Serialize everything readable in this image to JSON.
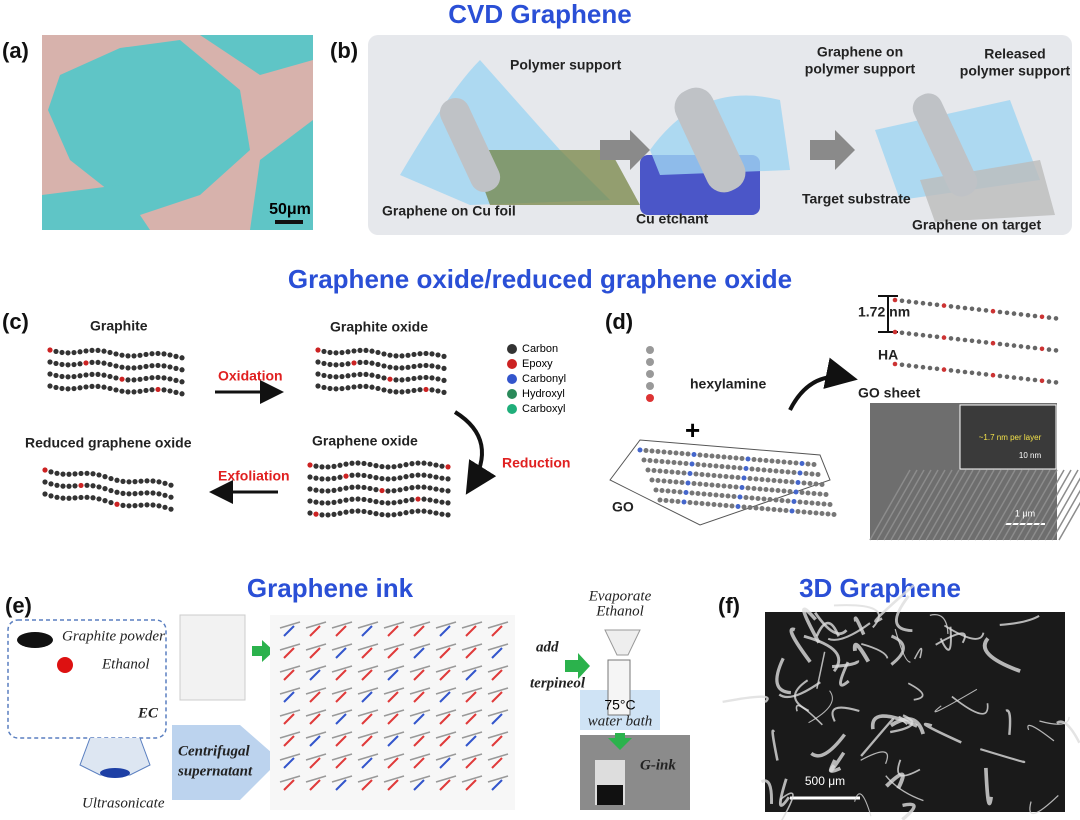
{
  "sections": {
    "cvd": "CVD Graphene",
    "go": "Graphene oxide/reduced graphene oxide",
    "ink": "Graphene ink",
    "three_d": "3D Graphene"
  },
  "panels": {
    "a": {
      "label": "(a)",
      "scale_bar": "50μm"
    },
    "b": {
      "label": "(b)",
      "polymer_support": "Polymer support",
      "graphene_on_polymer": [
        "Graphene on",
        "polymer support"
      ],
      "released": [
        "Released",
        "polymer support"
      ],
      "graphene_on_cu": "Graphene on Cu foil",
      "cu_etchant": "Cu etchant",
      "target_substrate": "Target substrate",
      "graphene_on_target": "Graphene on target"
    },
    "c": {
      "label": "(c)",
      "graphite": "Graphite",
      "graphite_oxide": "Graphite oxide",
      "oxidation": "Oxidation",
      "rgo": "Reduced graphene oxide",
      "graphene_oxide": "Graphene oxide",
      "exfoliation": "Exfoliation",
      "reduction": "Reduction",
      "legend": [
        "Carbon",
        "Epoxy",
        "Carbonyl",
        "Hydroxyl",
        "Carboxyl"
      ]
    },
    "d": {
      "label": "(d)",
      "spacing": "1.72 nm",
      "ha": "HA",
      "go_sheet": "GO sheet",
      "hexylamine": "hexylamine",
      "plus": "+",
      "go": "GO",
      "inset_layer": "~1.7 nm per layer",
      "inset_scale": "10 nm",
      "scale_bar": "1 μm"
    },
    "e": {
      "label": "(e)",
      "graphite_powder": "Graphite powder",
      "ethanol": "Ethanol",
      "ec": "EC",
      "ultrasonicate": "Ultrasonicate",
      "centrifugal": [
        "Centrifugal",
        "supernatant"
      ],
      "add": "add",
      "terpineol": "terpineol",
      "evaporate": [
        "Evaporate",
        "Ethanol"
      ],
      "temperature": "75°C",
      "water_bath": "water bath",
      "g_ink": "G-ink"
    },
    "f": {
      "label": "(f)",
      "scale_bar": "500 μm"
    }
  }
}
